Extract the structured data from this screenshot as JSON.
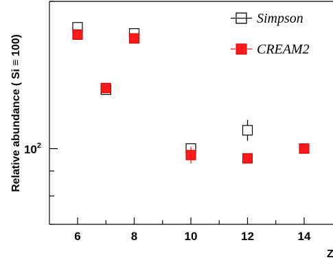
{
  "chart_data": {
    "type": "scatter",
    "xlabel": "Z",
    "ylabel": "Relative abundance ( Si ≡ 100)",
    "x_ticks": [
      6,
      8,
      10,
      12,
      14
    ],
    "x_minor_ticks": [
      7,
      9,
      11,
      13,
      15
    ],
    "xlim": [
      5,
      15
    ],
    "yscale": "log",
    "ylim": [
      70,
      200
    ],
    "y_tick_label": {
      "base": "10",
      "exponent": "2",
      "value": 100
    },
    "legend": {
      "placement": "top-right"
    },
    "series": [
      {
        "name": "Simpson",
        "marker": "open-square",
        "color": "#000000",
        "points": [
          {
            "x": 6,
            "y": 177
          },
          {
            "x": 7,
            "y": 132
          },
          {
            "x": 8,
            "y": 172
          },
          {
            "x": 10,
            "y": 100,
            "err": 0
          },
          {
            "x": 12,
            "y": 109,
            "err": 3
          }
        ]
      },
      {
        "name": "CREAM2",
        "marker": "filled-square",
        "color": "#ff1a1a",
        "points": [
          {
            "x": 6,
            "y": 171
          },
          {
            "x": 7,
            "y": 133
          },
          {
            "x": 8,
            "y": 168
          },
          {
            "x": 10,
            "y": 97,
            "err": 2
          },
          {
            "x": 12,
            "y": 95.5
          },
          {
            "x": 14,
            "y": 100
          }
        ]
      }
    ]
  }
}
